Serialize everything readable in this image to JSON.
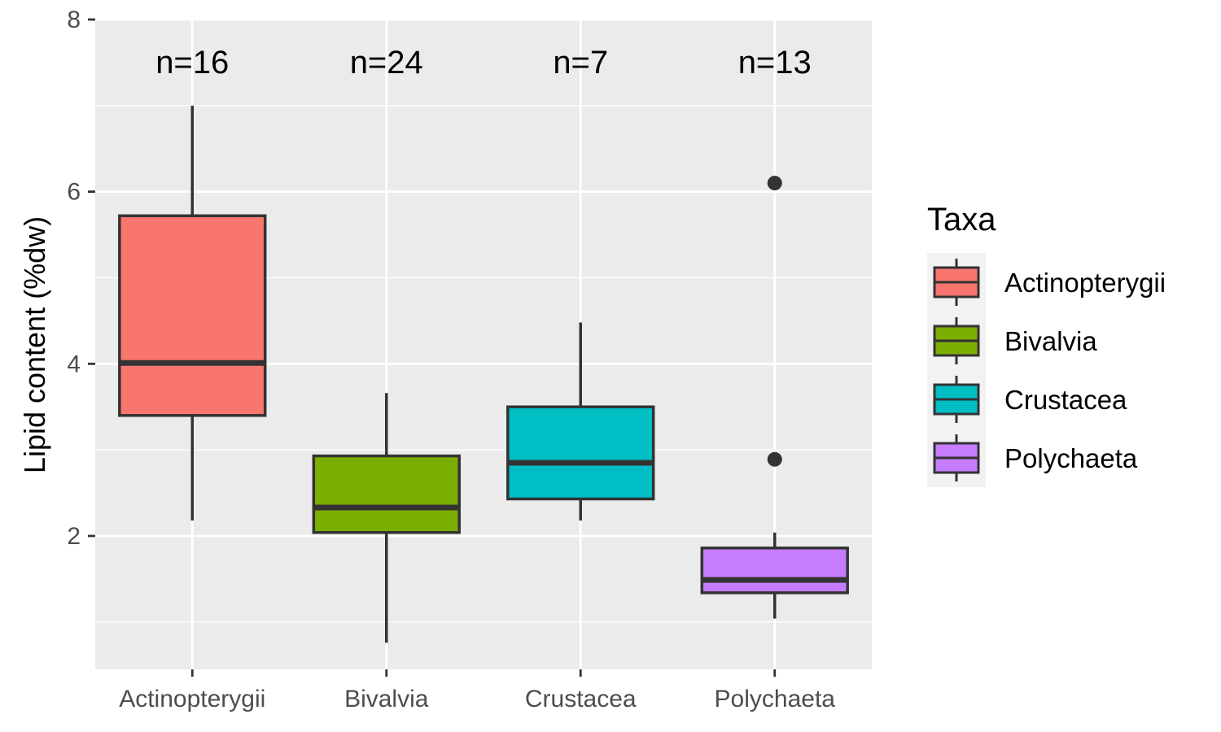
{
  "chart_data": {
    "type": "box",
    "ylabel": "Lipid content (%dw)",
    "xlabel": "",
    "ylim": [
      0.45,
      8
    ],
    "yticks": [
      2,
      4,
      6,
      8
    ],
    "grid": true,
    "legend": {
      "title": "Taxa",
      "position": "right"
    },
    "groups": [
      {
        "name": "Actinopterygii",
        "n_label": "n=16",
        "color": "#F8766D",
        "whisker_low": 2.18,
        "q1": 3.4,
        "median": 4.01,
        "q3": 5.72,
        "whisker_high": 7.0,
        "outliers": []
      },
      {
        "name": "Bivalvia",
        "n_label": "n=24",
        "color": "#7CAE00",
        "whisker_low": 0.76,
        "q1": 2.04,
        "median": 2.33,
        "q3": 2.93,
        "whisker_high": 3.66,
        "outliers": []
      },
      {
        "name": "Crustacea",
        "n_label": "n=7",
        "color": "#00BFC4",
        "whisker_low": 2.18,
        "q1": 2.43,
        "median": 2.85,
        "q3": 3.5,
        "whisker_high": 4.48,
        "outliers": []
      },
      {
        "name": "Polychaeta",
        "n_label": "n=13",
        "color": "#C77CFF",
        "whisker_low": 1.04,
        "q1": 1.34,
        "median": 1.49,
        "q3": 1.86,
        "whisker_high": 2.04,
        "outliers": [
          6.1,
          2.89
        ]
      }
    ]
  },
  "colors": {
    "panel": "#EBEBEB",
    "grid": "#FFFFFF",
    "box_line": "#333333",
    "tick_text": "#4D4D4D"
  }
}
